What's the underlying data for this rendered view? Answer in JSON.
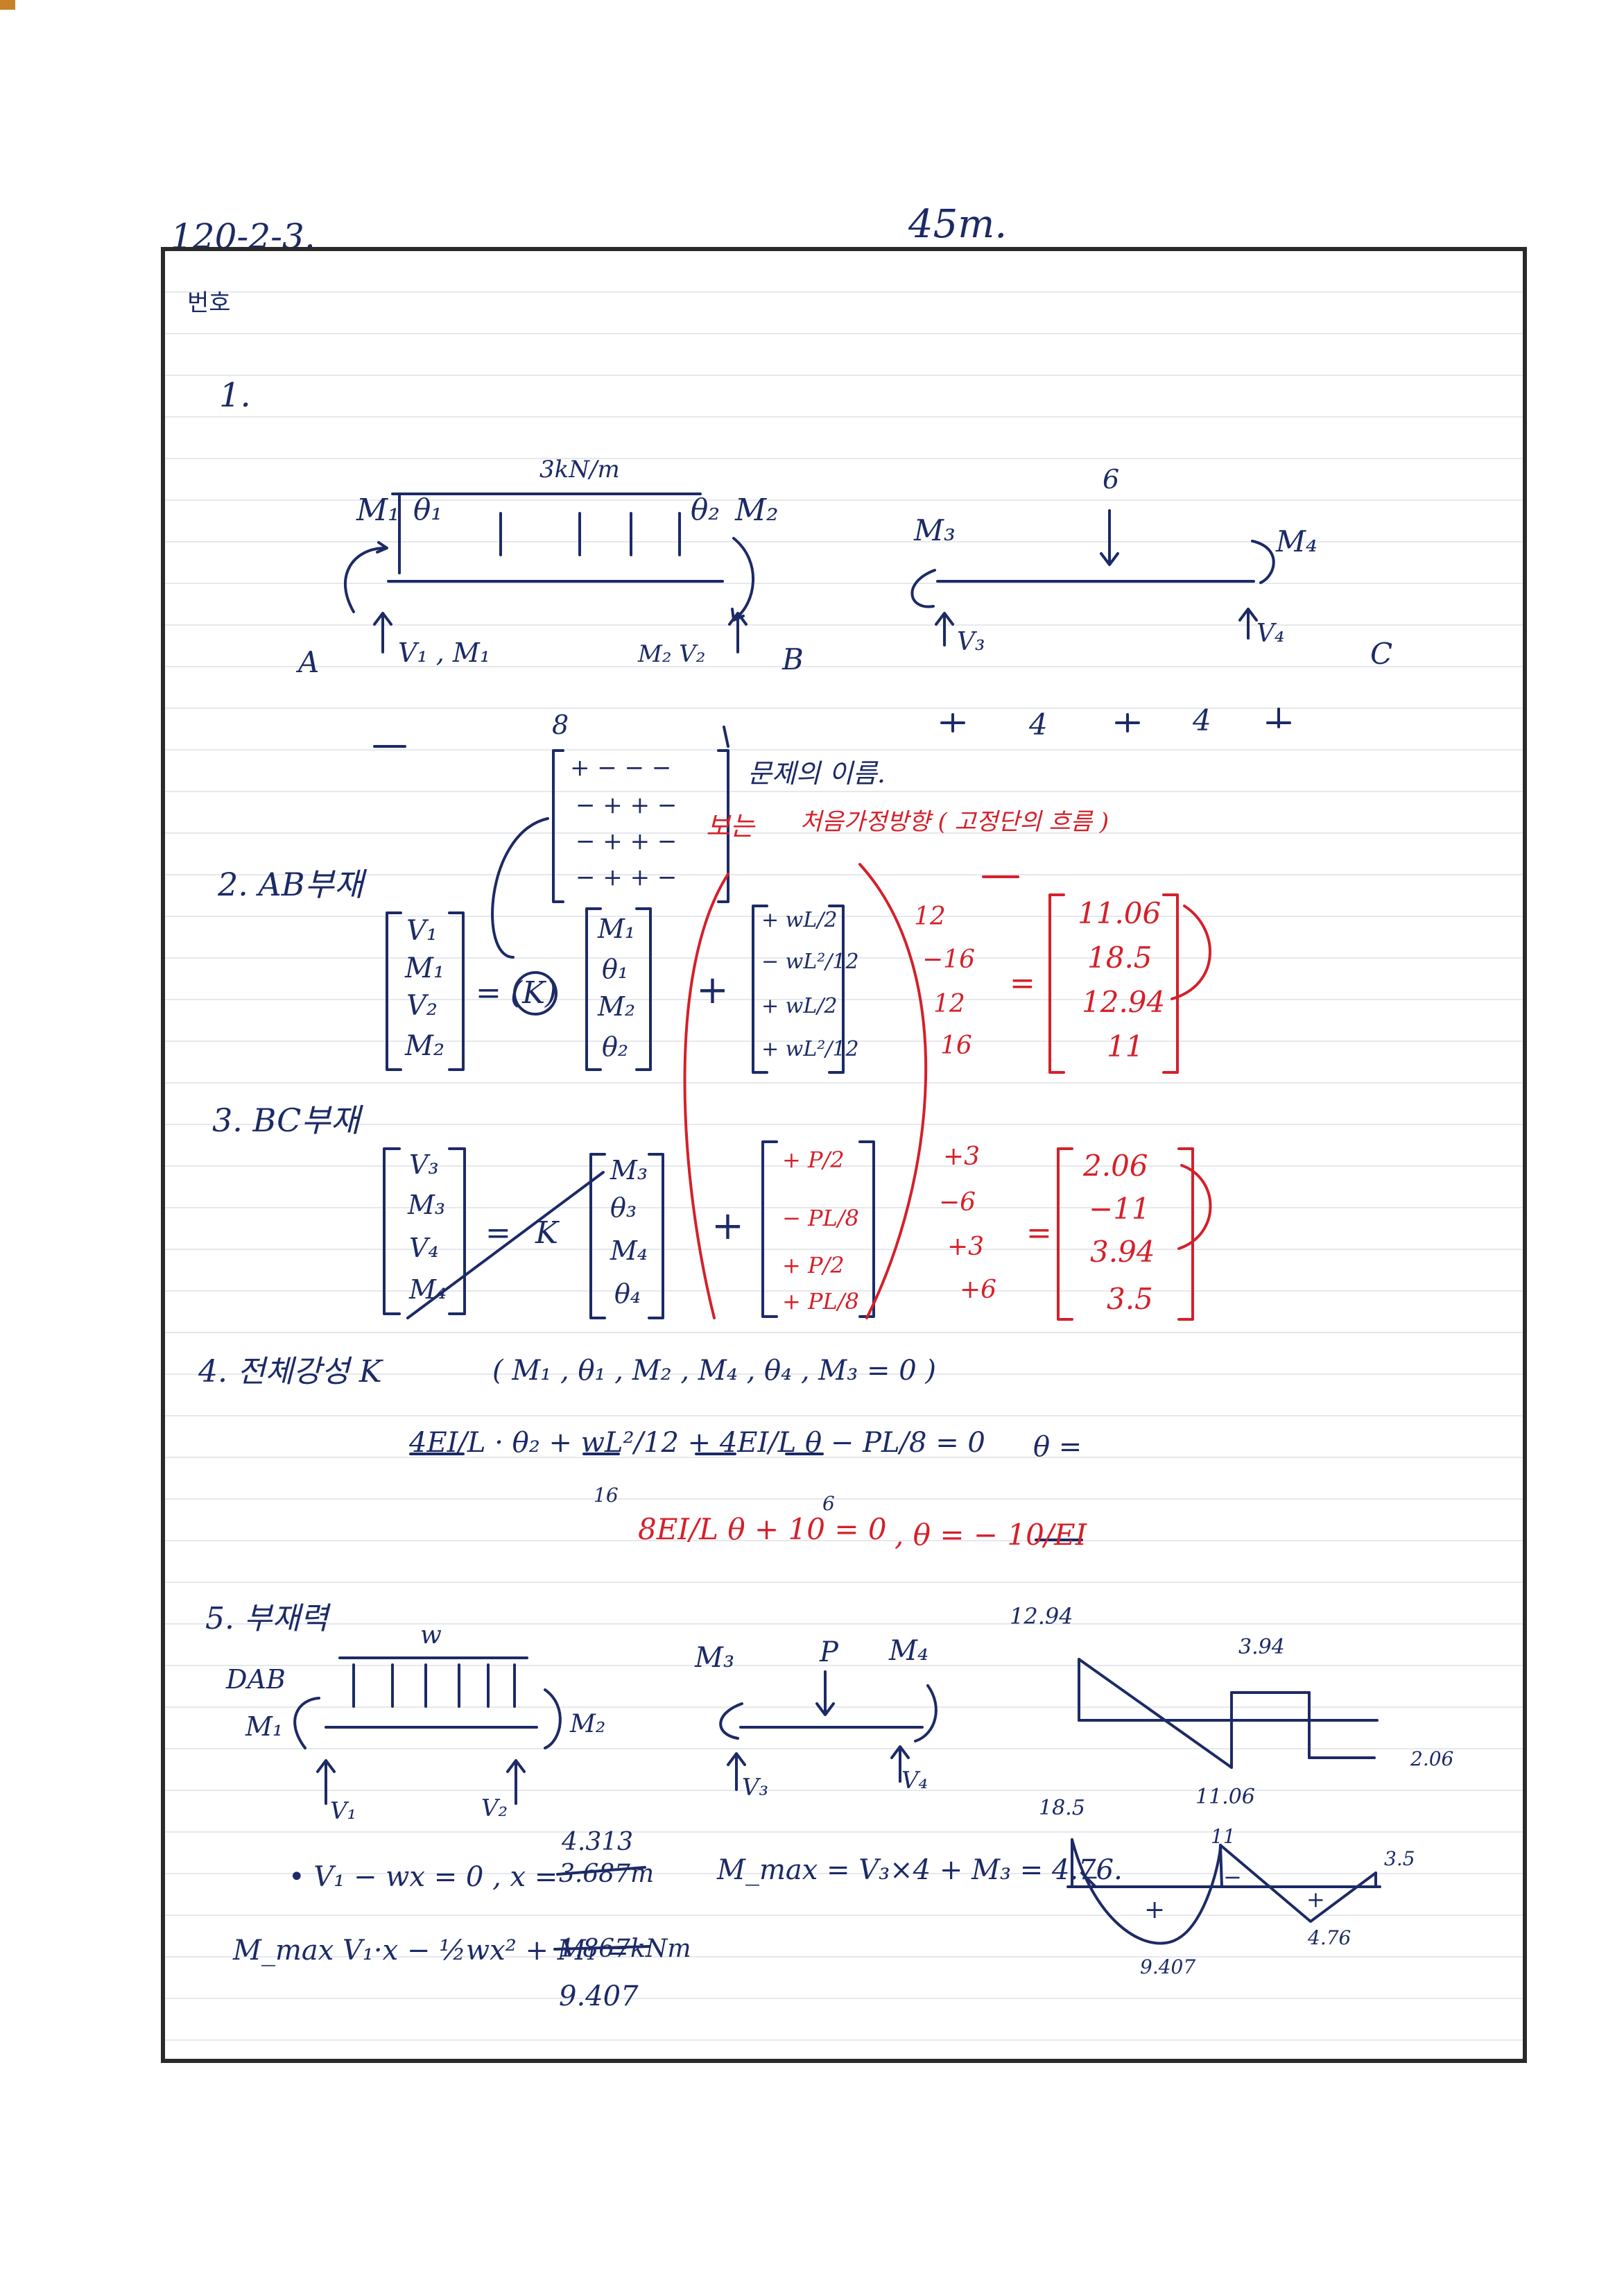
{
  "header": {
    "doc_id": "120-2-3",
    "doc_id_dot": ".",
    "score": "45m.",
    "number_label": "번호"
  },
  "q1": {
    "number": "1.",
    "load_label": "3kN/m",
    "point_load": "6",
    "m1": "M₁",
    "theta1": "θ₁",
    "theta2": "θ₂",
    "m2": "M₂",
    "m3": "M₃",
    "m4": "M₄",
    "a": "A",
    "b": "B",
    "c": "C",
    "v1_label": "V₁ , M₁",
    "v2_label": "M₂ V₂",
    "v3": "V₃",
    "v4": "V₄",
    "span_ab": "8",
    "span_bc1": "4",
    "span_bc2": "4"
  },
  "matrix_note": {
    "row1": "+ − − −",
    "row2": "− + + −",
    "row3": "− + + −",
    "row4": "− + + −",
    "note1": "문제의 이름.",
    "note2_prefix": "보는",
    "note2": "처음가정방향 ( 고정단의 흐름 )"
  },
  "q2": {
    "title": "2. AB부재",
    "lhs": [
      "V₁",
      "M₁",
      "V₂",
      "M₂"
    ],
    "k": "(K)",
    "eq": "=",
    "plus": "+",
    "dofs": [
      "M₁",
      "θ₁",
      "M₂",
      "θ₂"
    ],
    "fem": [
      "+ wL/2",
      "− wL²/12",
      "+ wL/2",
      "+ wL²/12"
    ],
    "fem_values": [
      "12",
      "−16",
      "12",
      "16"
    ],
    "results": [
      "11.06",
      "18.5",
      "12.94",
      "11"
    ]
  },
  "q3": {
    "title": "3. BC부재",
    "lhs": [
      "V₃",
      "M₃",
      "V₄",
      "M₄"
    ],
    "k": "K",
    "eq": "=",
    "plus": "+",
    "dofs": [
      "M₃",
      "θ₃",
      "M₄",
      "θ₄"
    ],
    "fem": [
      "+ P/2",
      "− PL/8",
      "+ P/2",
      "+ PL/8"
    ],
    "fem_values": [
      "+3",
      "−6",
      "+3",
      "+6"
    ],
    "results": [
      "2.06",
      "−11",
      "3.94",
      "3.5"
    ]
  },
  "q4": {
    "title": "4. 전체강성 K",
    "condition": "( M₁ , θ₁ , M₂ , M₄ , θ₄ , M₃ = 0 )",
    "equation": "4EI/L · θ₂ + wL²/12 + 4EI/L θ − PL/8 = 0",
    "theta_eq": "θ =",
    "val16": "16",
    "val6": "6",
    "red_equation": "8EI/L θ + 10 = 0",
    "red_result": ", θ = − 10/EI"
  },
  "q5": {
    "title": "5. 부재력",
    "dab": "DAB",
    "w": "w",
    "p": "P",
    "m1": "M₁",
    "m2": "M₂",
    "m3": "M₃",
    "m4": "M₄",
    "v1": "V₁",
    "v2": "V₂",
    "v3": "V₃",
    "v4": "V₄",
    "shear_labels": [
      "12.94",
      "3.94",
      "11.06",
      "2.06"
    ],
    "moment_labels": [
      "18.5",
      "11",
      "3.5",
      "9.407",
      "4.76"
    ],
    "moment_signs": [
      "+",
      "−",
      "+",
      "−"
    ],
    "eq1": "• V₁ − wx = 0 , x =",
    "eq1_new": "4.313",
    "eq1_old": "3.687m",
    "eq2": "M_max = V₃×4 + M₃ = 4.76.",
    "eq3": "M_max V₁·x − ½wx² + M₁ =",
    "eq3_old": "1.867kNm",
    "eq3_new": "9.407"
  },
  "colors": {
    "ink": "#1c2a66",
    "red": "#d4202a",
    "frame": "#2a2a2a",
    "rule": "#e6e8ec"
  }
}
